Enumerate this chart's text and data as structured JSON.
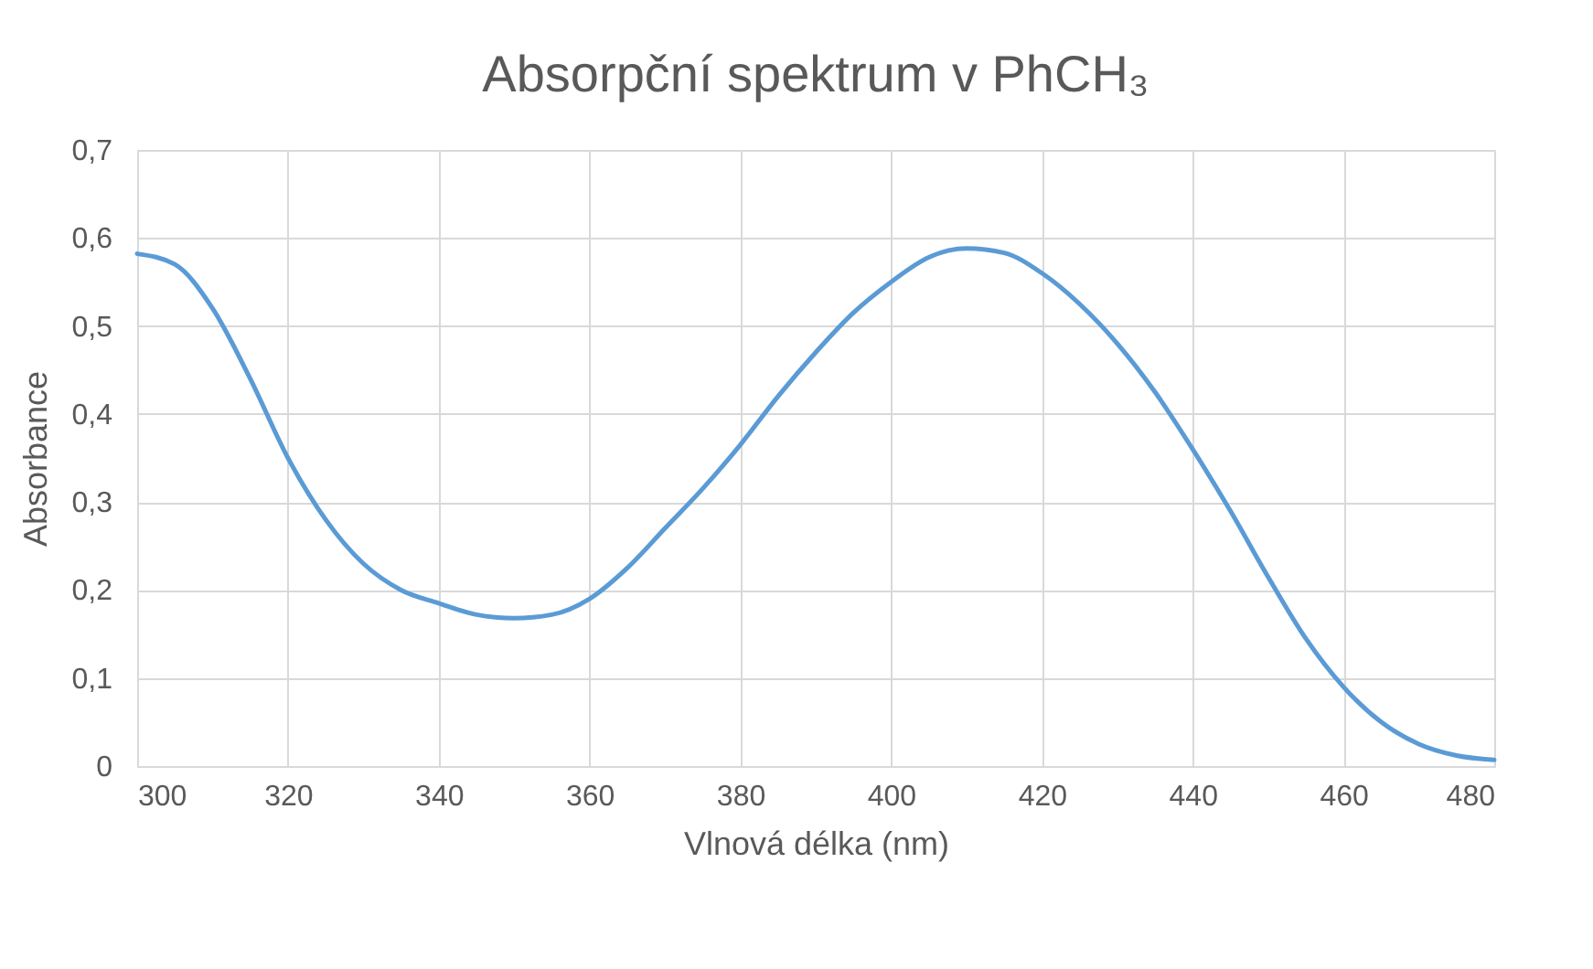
{
  "chart_data": {
    "type": "line",
    "title": "Absorpční spektrum v PhCH₃",
    "xlabel": "Vlnová délka (nm)",
    "ylabel": "Absorbance",
    "x": [
      300,
      305,
      310,
      315,
      320,
      325,
      330,
      335,
      340,
      345,
      350,
      355,
      360,
      365,
      370,
      375,
      380,
      385,
      390,
      395,
      400,
      405,
      410,
      415,
      420,
      425,
      430,
      435,
      440,
      445,
      450,
      455,
      460,
      465,
      470,
      475,
      480
    ],
    "series": [
      {
        "color": "#5b9bd5",
        "values": [
          0.582,
          0.57,
          0.52,
          0.44,
          0.35,
          0.28,
          0.23,
          0.2,
          0.185,
          0.172,
          0.168,
          0.172,
          0.19,
          0.225,
          0.27,
          0.315,
          0.365,
          0.42,
          0.47,
          0.515,
          0.55,
          0.578,
          0.588,
          0.583,
          0.56,
          0.525,
          0.48,
          0.425,
          0.36,
          0.29,
          0.215,
          0.145,
          0.09,
          0.05,
          0.025,
          0.012,
          0.007
        ]
      }
    ],
    "xlim": [
      300,
      480
    ],
    "xticks": [
      300,
      320,
      340,
      360,
      380,
      400,
      420,
      440,
      460,
      480
    ],
    "ylim": [
      0,
      0.7
    ],
    "yticks": [
      0,
      {
        "value": 0.1,
        "label": "0,1"
      },
      {
        "value": 0.2,
        "label": "0,2"
      },
      {
        "value": 0.3,
        "label": "0,3"
      },
      {
        "value": 0.4,
        "label": "0,4"
      },
      {
        "value": 0.5,
        "label": "0,5"
      },
      {
        "value": 0.6,
        "label": "0,6"
      },
      {
        "value": 0.7,
        "label": "0,7"
      }
    ],
    "grid": true,
    "marker": "none",
    "line_style": "solid"
  }
}
